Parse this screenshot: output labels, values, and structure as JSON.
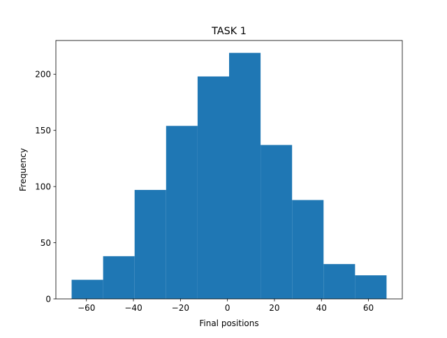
{
  "chart_data": {
    "type": "bar",
    "title": "TASK 1",
    "xlabel": "Final positions",
    "ylabel": "Frequency",
    "bins": [
      {
        "x0": -66.3,
        "x1": -52.9,
        "count": 17
      },
      {
        "x0": -52.9,
        "x1": -39.5,
        "count": 38
      },
      {
        "x0": -39.5,
        "x1": -26.1,
        "count": 97
      },
      {
        "x0": -26.1,
        "x1": -12.7,
        "count": 154
      },
      {
        "x0": -12.7,
        "x1": 0.7,
        "count": 198
      },
      {
        "x0": 0.7,
        "x1": 14.1,
        "count": 219
      },
      {
        "x0": 14.1,
        "x1": 27.5,
        "count": 137
      },
      {
        "x0": 27.5,
        "x1": 40.9,
        "count": 88
      },
      {
        "x0": 40.9,
        "x1": 54.3,
        "count": 31
      },
      {
        "x0": 54.3,
        "x1": 67.7,
        "count": 21
      }
    ],
    "xlim": [
      -73,
      74.4
    ],
    "ylim": [
      0,
      230
    ],
    "xticks": [
      -60,
      -40,
      -20,
      0,
      20,
      40,
      60
    ],
    "xtick_labels": [
      "−60",
      "−40",
      "−20",
      "0",
      "20",
      "40",
      "60"
    ],
    "yticks": [
      0,
      50,
      100,
      150,
      200
    ],
    "ytick_labels": [
      "0",
      "50",
      "100",
      "150",
      "200"
    ],
    "bar_color": "#1f77b4",
    "grid": false,
    "legend": "none"
  }
}
